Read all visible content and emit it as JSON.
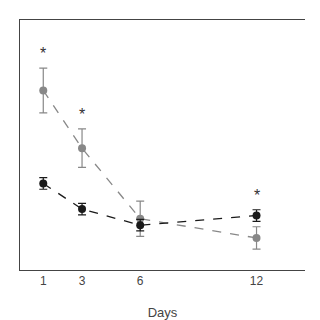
{
  "chart_data": {
    "type": "line",
    "xlabel": "Days",
    "x": [
      1,
      3,
      6,
      12
    ],
    "series": [
      {
        "color": "#888888",
        "values": [
          0.78,
          0.6,
          0.38,
          0.32
        ],
        "yerr": [
          0.07,
          0.06,
          0.055,
          0.035
        ],
        "line_style": "dashed",
        "marker": "circle"
      },
      {
        "color": "#1a1a1a",
        "values": [
          0.49,
          0.41,
          0.36,
          0.39
        ],
        "yerr": [
          0.018,
          0.018,
          0.018,
          0.018
        ],
        "line_style": "dashed",
        "marker": "circle"
      }
    ],
    "annotations": [
      {
        "text": "*",
        "x": 1,
        "y": 0.85,
        "color": "#333333"
      },
      {
        "text": "*",
        "x": 3,
        "y": 0.66,
        "color": "#333333"
      },
      {
        "text": "*",
        "x": 12,
        "y": 0.408,
        "color": "#333333"
      }
    ],
    "xlim": [
      -0.2,
      14.5
    ],
    "ylim": [
      0.22,
      1.0
    ],
    "xticks": [
      1,
      3,
      6,
      12
    ],
    "tick_labels": "x",
    "grid": false
  }
}
